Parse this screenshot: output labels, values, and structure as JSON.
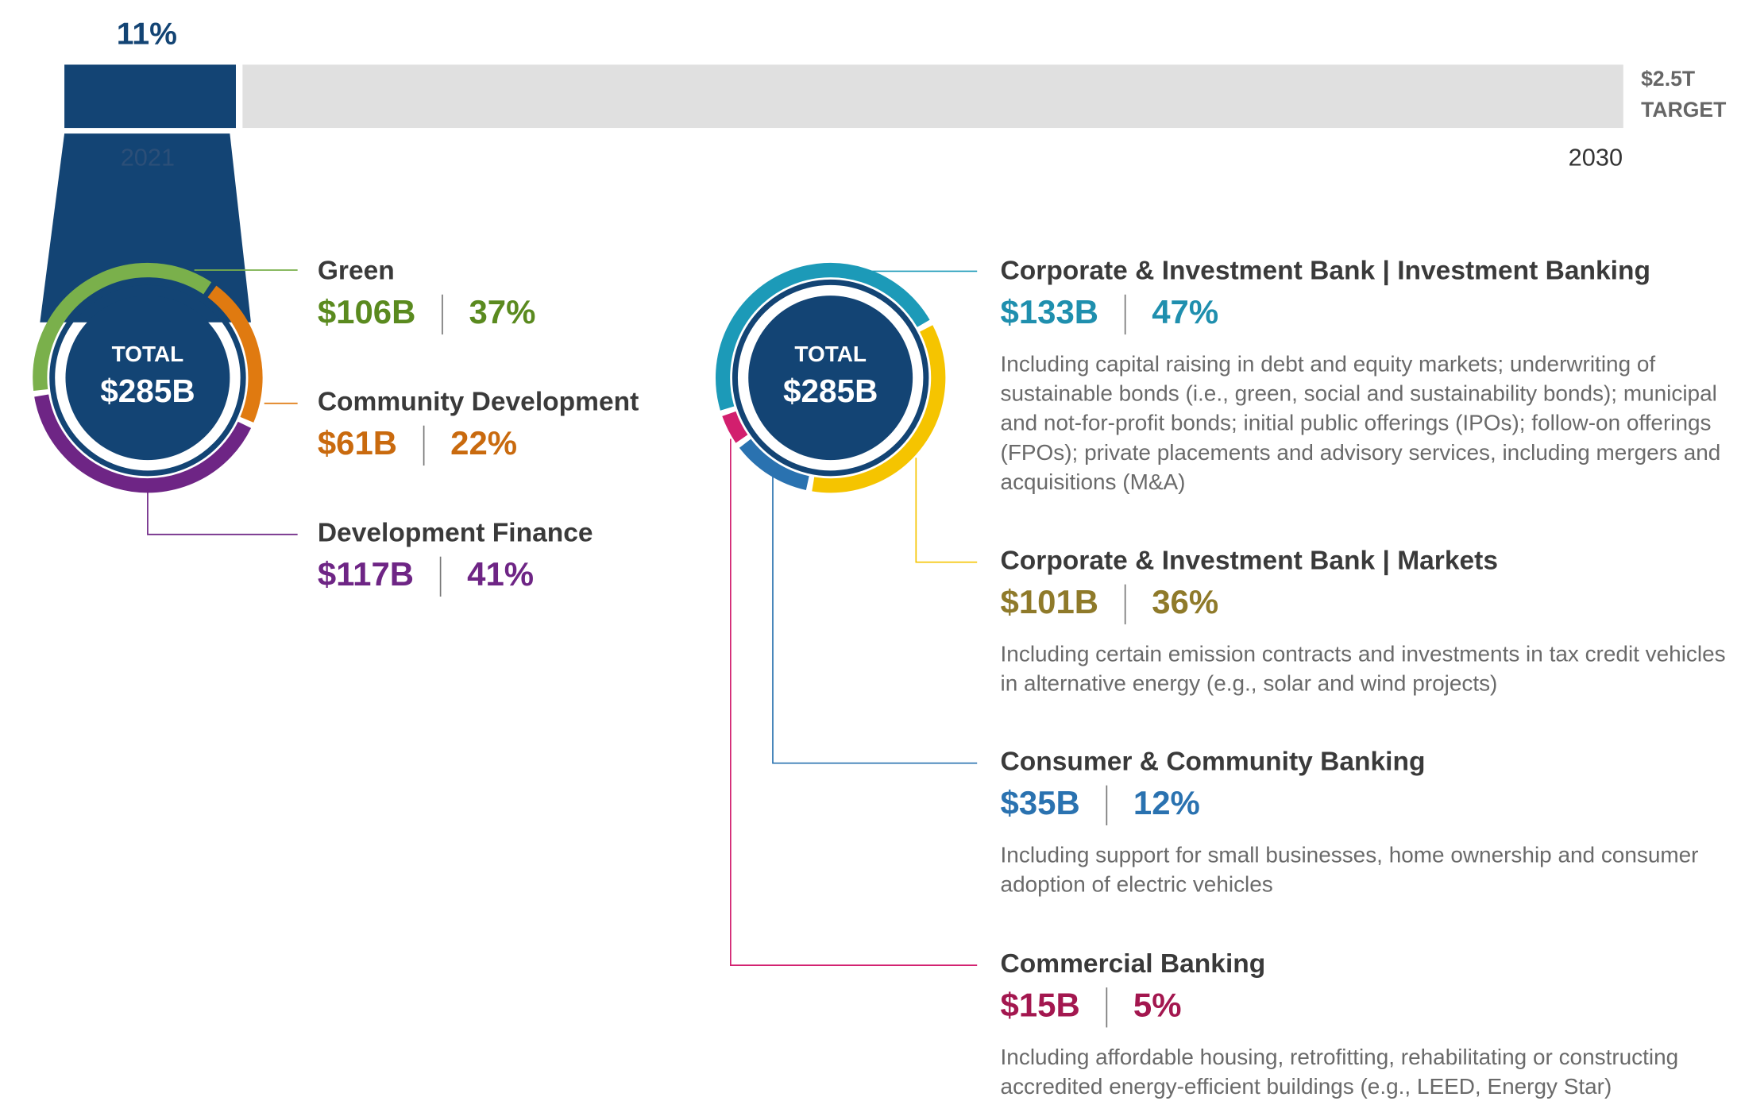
{
  "chart_data": [
    {
      "type": "progress",
      "value": 11,
      "value_label": "11%",
      "start_label": "2021",
      "end_label": "2030",
      "target_label": [
        "$2.5T",
        "TARGET"
      ],
      "color": "#134474",
      "track_color": "#e0e0e0"
    },
    {
      "type": "donut",
      "center_label": "TOTAL",
      "total": 285,
      "total_label": "$285B",
      "categories": [
        "Green",
        "Community Development",
        "Development Finance"
      ],
      "values": [
        106,
        61,
        117
      ],
      "value_labels": [
        "$106B",
        "$61B",
        "$117B"
      ],
      "shares": [
        37,
        22,
        41
      ],
      "share_labels": [
        "37%",
        "22%",
        "41%"
      ],
      "colors": [
        "#7ab04b",
        "#e07a10",
        "#6e2585"
      ],
      "text_colors": [
        "#5a8a1f",
        "#c96a0e",
        "#6e2585"
      ]
    },
    {
      "type": "donut",
      "center_label": "TOTAL",
      "total": 285,
      "total_label": "$285B",
      "categories": [
        "Corporate & Investment Bank | Investment Banking",
        "Corporate & Investment Bank | Markets",
        "Consumer & Community Banking",
        "Commercial Banking"
      ],
      "values": [
        133,
        101,
        35,
        15
      ],
      "value_labels": [
        "$133B",
        "$101B",
        "$35B",
        "$15B"
      ],
      "shares": [
        47,
        36,
        12,
        5
      ],
      "share_labels": [
        "47%",
        "36%",
        "12%",
        "5%"
      ],
      "colors": [
        "#1c9ab8",
        "#f5c400",
        "#2a72b0",
        "#d21f6e"
      ],
      "text_colors": [
        "#1f8fae",
        "#8f7a2a",
        "#2a72b0",
        "#a3174f"
      ],
      "descriptions": [
        [
          "Including capital raising in debt and equity markets; underwriting of",
          "sustainable bonds (i.e., green, social and sustainability bonds); municipal",
          "and not-for-profit bonds; initial public offerings (IPOs); follow-on offerings",
          "(FPOs); private placements and advisory services, including mergers and",
          "acquisitions (M&A)"
        ],
        [
          "Including certain emission contracts and investments in tax credit vehicles",
          "in alternative energy (e.g., solar and wind projects)"
        ],
        [
          "Including support for small businesses, home ownership and consumer",
          "adoption of electric vehicles"
        ],
        [
          "Including affordable housing, retrofitting, rehabilitating or constructing",
          "accredited energy-efficient buildings (e.g., LEED, Energy Star)"
        ]
      ]
    }
  ]
}
